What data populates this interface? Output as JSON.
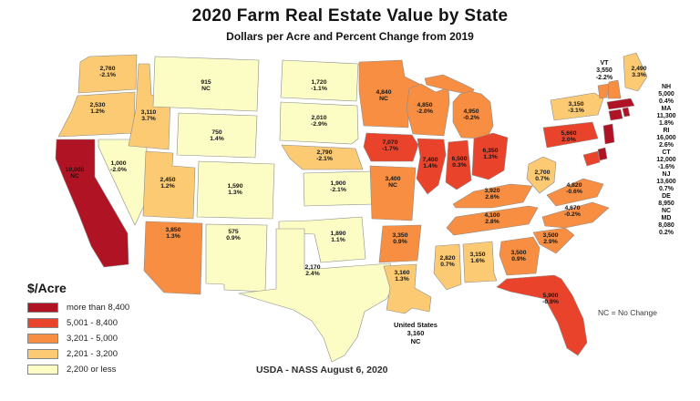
{
  "title": "2020 Farm Real Estate Value by State",
  "subtitle": "Dollars per Acre and Percent Change from 2019",
  "legend": {
    "title": "$/Acre",
    "items": [
      {
        "label": "more than 8,400",
        "color": "#b01424"
      },
      {
        "label": "5,001 - 8,400",
        "color": "#e9432b"
      },
      {
        "label": "3,201 - 5,000",
        "color": "#f78e41"
      },
      {
        "label": "2,201 - 3,200",
        "color": "#fbca73"
      },
      {
        "label": "2,200 or less",
        "color": "#fcfcc5"
      }
    ]
  },
  "chart_data": {
    "type": "choropleth",
    "title": "2020 Farm Real Estate Value by State",
    "value_unit": "dollars per acre",
    "change_unit": "percent change from 2019",
    "legend_buckets": [
      "more than 8,400",
      "5,001 - 8,400",
      "3,201 - 5,000",
      "2,201 - 3,200",
      "2,200 or less"
    ],
    "states": [
      {
        "abbr": "WA",
        "value": "2,760",
        "change": "-2.1%",
        "category": 4
      },
      {
        "abbr": "OR",
        "value": "2,530",
        "change": "1.2%",
        "category": 4
      },
      {
        "abbr": "CA",
        "value": "10,000",
        "change": "NC",
        "category": 1
      },
      {
        "abbr": "NV",
        "value": "1,000",
        "change": "-2.0%",
        "category": 5
      },
      {
        "abbr": "ID",
        "value": "3,110",
        "change": "3.7%",
        "category": 4
      },
      {
        "abbr": "MT",
        "value": "915",
        "change": "NC",
        "category": 5
      },
      {
        "abbr": "WY",
        "value": "750",
        "change": "1.4%",
        "category": 5
      },
      {
        "abbr": "UT",
        "value": "2,450",
        "change": "1.2%",
        "category": 4
      },
      {
        "abbr": "CO",
        "value": "1,590",
        "change": "1.3%",
        "category": 5
      },
      {
        "abbr": "AZ",
        "value": "3,850",
        "change": "1.3%",
        "category": 3
      },
      {
        "abbr": "NM",
        "value": "575",
        "change": "0.9%",
        "category": 5
      },
      {
        "abbr": "ND",
        "value": "1,720",
        "change": "-1.1%",
        "category": 5
      },
      {
        "abbr": "SD",
        "value": "2,010",
        "change": "-2.9%",
        "category": 5
      },
      {
        "abbr": "NE",
        "value": "2,790",
        "change": "-2.1%",
        "category": 4
      },
      {
        "abbr": "KS",
        "value": "1,900",
        "change": "-2.1%",
        "category": 5
      },
      {
        "abbr": "OK",
        "value": "1,890",
        "change": "1.1%",
        "category": 5
      },
      {
        "abbr": "TX",
        "value": "2,170",
        "change": "2.4%",
        "category": 5
      },
      {
        "abbr": "MN",
        "value": "4,840",
        "change": "NC",
        "category": 3
      },
      {
        "abbr": "IA",
        "value": "7,070",
        "change": "-1.7%",
        "category": 2
      },
      {
        "abbr": "MO",
        "value": "3,400",
        "change": "NC",
        "category": 3
      },
      {
        "abbr": "WI",
        "value": "4,850",
        "change": "-2.0%",
        "category": 3
      },
      {
        "abbr": "IL",
        "value": "7,400",
        "change": "1.4%",
        "category": 2
      },
      {
        "abbr": "IN",
        "value": "6,500",
        "change": "0.3%",
        "category": 2
      },
      {
        "abbr": "MI",
        "value": "4,950",
        "change": "-0.2%",
        "category": 3
      },
      {
        "abbr": "OH",
        "value": "6,350",
        "change": "1.3%",
        "category": 2
      },
      {
        "abbr": "KY",
        "value": "3,920",
        "change": "2.6%",
        "category": 3
      },
      {
        "abbr": "TN",
        "value": "4,100",
        "change": "2.8%",
        "category": 3
      },
      {
        "abbr": "WV",
        "value": "2,700",
        "change": "0.7%",
        "category": 4
      },
      {
        "abbr": "VA",
        "value": "4,820",
        "change": "-0.6%",
        "category": 3
      },
      {
        "abbr": "NC",
        "value": "4,670",
        "change": "-0.2%",
        "category": 3
      },
      {
        "abbr": "SC",
        "value": "3,500",
        "change": "2.9%",
        "category": 3
      },
      {
        "abbr": "GA",
        "value": "3,500",
        "change": "0.9%",
        "category": 3
      },
      {
        "abbr": "AL",
        "value": "3,150",
        "change": "1.6%",
        "category": 4
      },
      {
        "abbr": "MS",
        "value": "2,820",
        "change": "0.7%",
        "category": 4
      },
      {
        "abbr": "AR",
        "value": "3,350",
        "change": "0.9%",
        "category": 3
      },
      {
        "abbr": "LA",
        "value": "3,160",
        "change": "1.3%",
        "category": 4
      },
      {
        "abbr": "FL",
        "value": "5,900",
        "change": "-0.9%",
        "category": 2
      },
      {
        "abbr": "NY",
        "value": "3,150",
        "change": "-3.1%",
        "category": 4
      },
      {
        "abbr": "PA",
        "value": "5,660",
        "change": "2.0%",
        "category": 2
      },
      {
        "abbr": "ME",
        "value": "2,490",
        "change": "3.3%",
        "category": 4
      },
      {
        "abbr": "VT",
        "value": "3,550",
        "change": "-2.2%",
        "category": 3
      },
      {
        "abbr": "NH",
        "value": "5,000",
        "change": "0.4%",
        "category": 3
      },
      {
        "abbr": "MA",
        "value": "11,300",
        "change": "1.8%",
        "category": 1
      },
      {
        "abbr": "RI",
        "value": "16,000",
        "change": "2.6%",
        "category": 1
      },
      {
        "abbr": "CT",
        "value": "12,000",
        "change": "-1.6%",
        "category": 1
      },
      {
        "abbr": "NJ",
        "value": "13,600",
        "change": "0.7%",
        "category": 1
      },
      {
        "abbr": "DE",
        "value": "8,950",
        "change": "NC",
        "category": 1
      },
      {
        "abbr": "MD",
        "value": "8,080",
        "change": "0.2%",
        "category": 2
      }
    ],
    "united_states": {
      "label": "United States",
      "value": "3,160",
      "change": "NC"
    }
  },
  "vt_callout": "VT",
  "northeast_column": [
    "NH",
    "MA",
    "RI",
    "CT",
    "NJ",
    "DE",
    "MD"
  ],
  "us_summary": {
    "label": "United States",
    "value": "3,160",
    "change": "NC"
  },
  "source": "USDA - NASS August 6, 2020",
  "note": "NC = No Change"
}
